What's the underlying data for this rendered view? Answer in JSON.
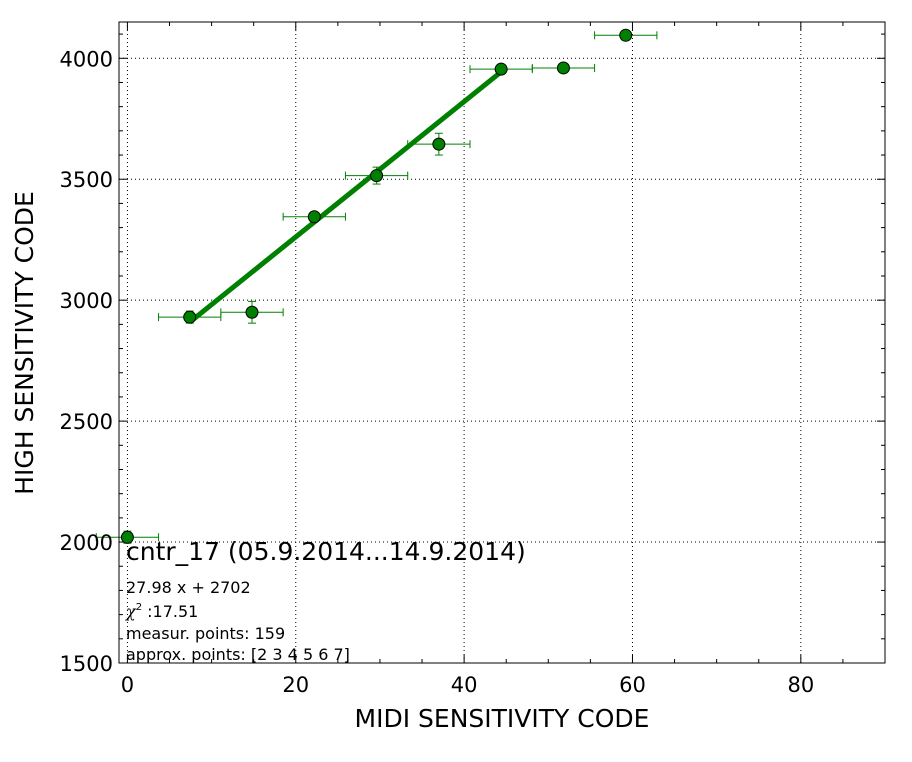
{
  "chart_data": {
    "type": "scatter",
    "xlabel": "MIDI SENSITIVITY CODE",
    "ylabel": "HIGH SENSITIVITY CODE",
    "xlim": [
      -1,
      90
    ],
    "ylim": [
      1500,
      4150
    ],
    "xticks": [
      0,
      20,
      40,
      60,
      80
    ],
    "yticks": [
      1500,
      2000,
      2500,
      3000,
      3500,
      4000
    ],
    "grid": true,
    "colors": {
      "points": "#008000",
      "fit_line": "#008000",
      "errorbars": "#008000"
    },
    "points": [
      {
        "x": 0.0,
        "y": 2020,
        "xerr": 3.7,
        "yerr": 25
      },
      {
        "x": 7.4,
        "y": 2930,
        "xerr": 3.7,
        "yerr": 25
      },
      {
        "x": 14.8,
        "y": 2950,
        "xerr": 3.7,
        "yerr": 45
      },
      {
        "x": 22.2,
        "y": 3345,
        "xerr": 3.7,
        "yerr": 20
      },
      {
        "x": 29.6,
        "y": 3515,
        "xerr": 3.7,
        "yerr": 35
      },
      {
        "x": 37.0,
        "y": 3645,
        "xerr": 3.7,
        "yerr": 45
      },
      {
        "x": 44.4,
        "y": 3955,
        "xerr": 3.7,
        "yerr": 15
      },
      {
        "x": 51.8,
        "y": 3960,
        "xerr": 3.7,
        "yerr": 15
      },
      {
        "x": 59.2,
        "y": 4095,
        "xerr": 3.7,
        "yerr": 10
      }
    ],
    "fit_line": {
      "x": [
        7.4,
        44.4
      ],
      "y": [
        2909,
        3944
      ]
    },
    "annotation": {
      "title": "cntr_17 (05.9.2014...14.9.2014)",
      "equation": "27.98 x + 2702",
      "chi2_symbol": "χ",
      "chi2_exp": "2",
      "chi2_value": " :17.51",
      "measur_points": "measur. points: 159",
      "approx_points": "approx. points: [2 3 4 5 6 7]"
    }
  }
}
